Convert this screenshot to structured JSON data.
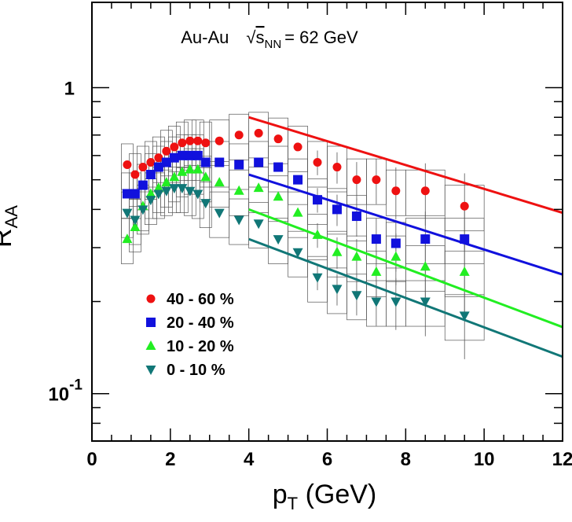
{
  "chart_data": {
    "type": "scatter",
    "annotation": {
      "system": "Au-Au",
      "energy_symbol": "s",
      "energy_subscript": "NN",
      "energy_value": "= 62 GeV"
    },
    "xlabel": {
      "main": "p",
      "sub": "T",
      "unit": " (GeV)"
    },
    "ylabel": {
      "main": "R",
      "sub": "AA"
    },
    "xlim": [
      0,
      12
    ],
    "ylim": [
      0.07,
      1.9
    ],
    "yscale": "log",
    "x_ticks": [
      {
        "value": 0,
        "label": "0"
      },
      {
        "value": 2,
        "label": "2"
      },
      {
        "value": 4,
        "label": "4"
      },
      {
        "value": 6,
        "label": "6"
      },
      {
        "value": 8,
        "label": "8"
      },
      {
        "value": 10,
        "label": "10"
      },
      {
        "value": 12,
        "label": "12"
      }
    ],
    "y_ticks": [
      {
        "value": 1,
        "label": "1",
        "exp": ""
      },
      {
        "value": 0.1,
        "label": "10",
        "exp": "-1"
      }
    ],
    "grid": false,
    "legend_position": "bottom-left",
    "x": [
      0.9,
      1.1,
      1.3,
      1.5,
      1.7,
      1.9,
      2.1,
      2.3,
      2.5,
      2.7,
      2.9,
      3.25,
      3.75,
      4.25,
      4.75,
      5.25,
      5.75,
      6.25,
      6.75,
      7.25,
      7.75,
      8.5,
      9.5
    ],
    "series": [
      {
        "name": "40 - 60 %",
        "marker": "circle",
        "color": "#ee1111",
        "values": [
          0.56,
          0.52,
          0.55,
          0.57,
          0.59,
          0.62,
          0.64,
          0.66,
          0.67,
          0.67,
          0.66,
          0.67,
          0.7,
          0.71,
          0.68,
          0.64,
          0.57,
          0.55,
          0.5,
          0.5,
          0.46,
          0.46,
          0.41
        ]
      },
      {
        "name": "20 - 40 %",
        "marker": "square",
        "color": "#1111dd",
        "values": [
          0.45,
          0.45,
          0.48,
          0.52,
          0.55,
          0.57,
          0.59,
          0.6,
          0.6,
          0.6,
          0.57,
          0.57,
          0.56,
          0.57,
          0.55,
          0.5,
          0.43,
          0.4,
          0.38,
          0.32,
          0.31,
          0.32,
          0.32
        ]
      },
      {
        "name": "10 - 20 %",
        "marker": "triangle-up",
        "color": "#22ee22",
        "values": [
          0.32,
          0.35,
          0.41,
          0.45,
          0.47,
          0.49,
          0.51,
          0.53,
          0.54,
          0.54,
          0.51,
          0.49,
          0.46,
          0.47,
          0.44,
          0.39,
          0.33,
          0.29,
          0.28,
          0.25,
          0.28,
          0.26,
          0.25
        ]
      },
      {
        "name": "0 - 10 %",
        "marker": "triangle-down",
        "color": "#117777",
        "values": [
          0.39,
          0.37,
          0.4,
          0.43,
          0.45,
          0.46,
          0.47,
          0.47,
          0.46,
          0.45,
          0.42,
          0.39,
          0.37,
          0.36,
          0.32,
          0.29,
          0.24,
          0.22,
          0.21,
          0.2,
          0.2,
          0.2,
          0.18
        ]
      }
    ],
    "systematic_boxes": {
      "half_width": [
        0.15,
        0.15,
        0.15,
        0.15,
        0.15,
        0.15,
        0.15,
        0.15,
        0.15,
        0.15,
        0.15,
        0.25,
        0.25,
        0.25,
        0.25,
        0.25,
        0.25,
        0.25,
        0.25,
        0.25,
        0.25,
        0.5,
        0.5
      ],
      "relative_error": 0.17
    },
    "theory_curves": [
      {
        "name": "40 - 60 %",
        "color": "#ee1111",
        "x": [
          4,
          12
        ],
        "y": [
          0.8,
          0.39
        ]
      },
      {
        "name": "20 - 40 %",
        "color": "#1111dd",
        "x": [
          4,
          12
        ],
        "y": [
          0.52,
          0.245
        ]
      },
      {
        "name": "10 - 20 %",
        "color": "#22ee22",
        "x": [
          4,
          12
        ],
        "y": [
          0.4,
          0.165
        ]
      },
      {
        "name": "0 - 10 %",
        "color": "#117777",
        "x": [
          4,
          12
        ],
        "y": [
          0.32,
          0.132
        ]
      }
    ]
  }
}
